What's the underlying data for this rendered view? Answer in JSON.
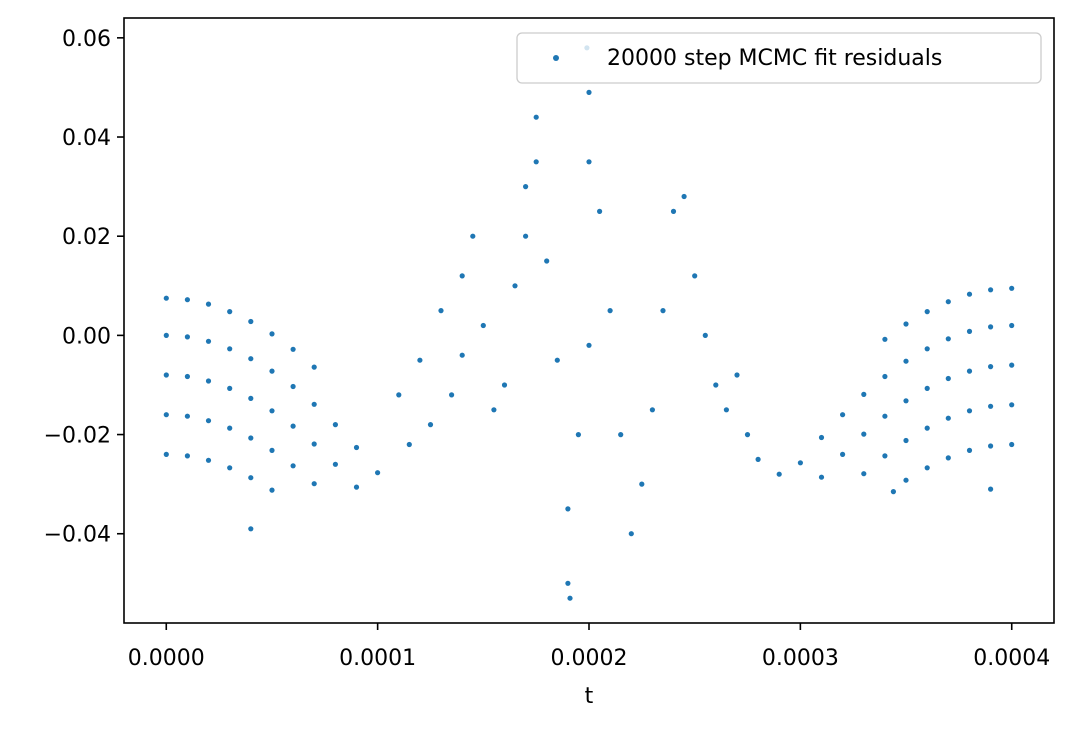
{
  "chart_data": {
    "type": "scatter",
    "title": "",
    "xlabel": "t",
    "ylabel": "",
    "xlim": [
      -2e-05,
      0.00042
    ],
    "ylim": [
      -0.058,
      0.064
    ],
    "xticks": [
      0.0,
      0.0001,
      0.0002,
      0.0003,
      0.0004
    ],
    "xtick_labels": [
      "0.0000",
      "0.0001",
      "0.0002",
      "0.0003",
      "0.0004"
    ],
    "yticks": [
      -0.04,
      -0.02,
      0.0,
      0.02,
      0.04,
      0.06
    ],
    "ytick_labels": [
      "−0.04",
      "−0.02",
      "0.00",
      "0.02",
      "0.04",
      "0.06"
    ],
    "grid": false,
    "legend": {
      "position": "top-right"
    },
    "colors": {
      "series": "#1f77b4"
    },
    "series": [
      {
        "name": "20000 step MCMC fit residuals",
        "points": [
          [
            0.0,
            0.0
          ],
          [
            1e-05,
            -0.0003
          ],
          [
            2e-05,
            -0.0012
          ],
          [
            3e-05,
            -0.0027
          ],
          [
            4e-05,
            -0.0047
          ],
          [
            5e-05,
            -0.0072
          ],
          [
            6e-05,
            -0.0103
          ],
          [
            7e-05,
            -0.0139
          ],
          [
            8e-05,
            -0.018
          ],
          [
            9e-05,
            -0.0226
          ],
          [
            0.0001,
            -0.0277
          ],
          [
            0.0,
            -0.008
          ],
          [
            1e-05,
            -0.0083
          ],
          [
            2e-05,
            -0.0092
          ],
          [
            3e-05,
            -0.0107
          ],
          [
            4e-05,
            -0.0127
          ],
          [
            5e-05,
            -0.0152
          ],
          [
            6e-05,
            -0.0183
          ],
          [
            7e-05,
            -0.0219
          ],
          [
            8e-05,
            -0.026
          ],
          [
            9e-05,
            -0.0306
          ],
          [
            0.0,
            -0.016
          ],
          [
            1e-05,
            -0.0163
          ],
          [
            2e-05,
            -0.0172
          ],
          [
            3e-05,
            -0.0187
          ],
          [
            4e-05,
            -0.0207
          ],
          [
            5e-05,
            -0.0232
          ],
          [
            6e-05,
            -0.0263
          ],
          [
            7e-05,
            -0.0299
          ],
          [
            0.0,
            -0.024
          ],
          [
            1e-05,
            -0.0243
          ],
          [
            2e-05,
            -0.0252
          ],
          [
            3e-05,
            -0.0267
          ],
          [
            4e-05,
            -0.0287
          ],
          [
            5e-05,
            -0.0312
          ],
          [
            0.0,
            0.0075
          ],
          [
            1e-05,
            0.0072
          ],
          [
            2e-05,
            0.0063
          ],
          [
            3e-05,
            0.0048
          ],
          [
            4e-05,
            0.0028
          ],
          [
            5e-05,
            0.0003
          ],
          [
            6e-05,
            -0.0028
          ],
          [
            7e-05,
            -0.0064
          ],
          [
            0.0004,
            0.002
          ],
          [
            0.00039,
            0.0017
          ],
          [
            0.00038,
            0.0008
          ],
          [
            0.00037,
            -0.0007
          ],
          [
            0.00036,
            -0.0027
          ],
          [
            0.00035,
            -0.0052
          ],
          [
            0.00034,
            -0.0083
          ],
          [
            0.00033,
            -0.0119
          ],
          [
            0.00032,
            -0.016
          ],
          [
            0.00031,
            -0.0206
          ],
          [
            0.0003,
            -0.0257
          ],
          [
            0.0004,
            -0.006
          ],
          [
            0.00039,
            -0.0063
          ],
          [
            0.00038,
            -0.0072
          ],
          [
            0.00037,
            -0.0087
          ],
          [
            0.00036,
            -0.0107
          ],
          [
            0.00035,
            -0.0132
          ],
          [
            0.00034,
            -0.0163
          ],
          [
            0.00033,
            -0.0199
          ],
          [
            0.00032,
            -0.024
          ],
          [
            0.00031,
            -0.0286
          ],
          [
            0.0004,
            -0.014
          ],
          [
            0.00039,
            -0.0143
          ],
          [
            0.00038,
            -0.0152
          ],
          [
            0.00037,
            -0.0167
          ],
          [
            0.00036,
            -0.0187
          ],
          [
            0.00035,
            -0.0212
          ],
          [
            0.00034,
            -0.0243
          ],
          [
            0.00033,
            -0.0279
          ],
          [
            0.0004,
            -0.022
          ],
          [
            0.00039,
            -0.0223
          ],
          [
            0.00038,
            -0.0232
          ],
          [
            0.00037,
            -0.0247
          ],
          [
            0.00036,
            -0.0267
          ],
          [
            0.00035,
            -0.0292
          ],
          [
            0.0004,
            0.0095
          ],
          [
            0.00039,
            0.0092
          ],
          [
            0.00038,
            0.0083
          ],
          [
            0.00037,
            0.0068
          ],
          [
            0.00036,
            0.0048
          ],
          [
            0.00035,
            0.0023
          ],
          [
            0.00034,
            -0.0008
          ],
          [
            4e-05,
            -0.039
          ],
          [
            0.00039,
            -0.031
          ],
          [
            0.000344,
            -0.0315
          ],
          [
            0.00011,
            -0.012
          ],
          [
            0.000115,
            -0.022
          ],
          [
            0.00012,
            -0.005
          ],
          [
            0.000125,
            -0.018
          ],
          [
            0.00013,
            0.005
          ],
          [
            0.000135,
            -0.012
          ],
          [
            0.00014,
            0.012
          ],
          [
            0.00014,
            -0.004
          ],
          [
            0.000145,
            0.02
          ],
          [
            0.00015,
            0.002
          ],
          [
            0.000155,
            -0.015
          ],
          [
            0.00016,
            -0.01
          ],
          [
            0.000165,
            0.01
          ],
          [
            0.00017,
            0.03
          ],
          [
            0.00017,
            0.02
          ],
          [
            0.000175,
            0.035
          ],
          [
            0.00018,
            0.015
          ],
          [
            0.000185,
            -0.005
          ],
          [
            0.00019,
            -0.035
          ],
          [
            0.00019,
            -0.05
          ],
          [
            0.000195,
            -0.02
          ],
          [
            0.0002,
            0.049
          ],
          [
            0.0002,
            0.035
          ],
          [
            0.000205,
            0.025
          ],
          [
            0.00021,
            0.005
          ],
          [
            0.000215,
            -0.02
          ],
          [
            0.00022,
            -0.04
          ],
          [
            0.000225,
            -0.03
          ],
          [
            0.00023,
            -0.015
          ],
          [
            0.000235,
            0.005
          ],
          [
            0.00024,
            0.025
          ],
          [
            0.000245,
            0.028
          ],
          [
            0.00025,
            0.012
          ],
          [
            0.000255,
            0.0
          ],
          [
            0.00026,
            -0.01
          ],
          [
            0.000265,
            -0.015
          ],
          [
            0.00027,
            -0.008
          ],
          [
            0.000275,
            -0.02
          ],
          [
            0.00028,
            -0.025
          ],
          [
            0.00029,
            -0.028
          ],
          [
            0.000175,
            0.044
          ],
          [
            0.0002,
            -0.002
          ],
          [
            0.000191,
            -0.053
          ],
          [
            0.000199,
            0.058
          ]
        ]
      }
    ]
  }
}
